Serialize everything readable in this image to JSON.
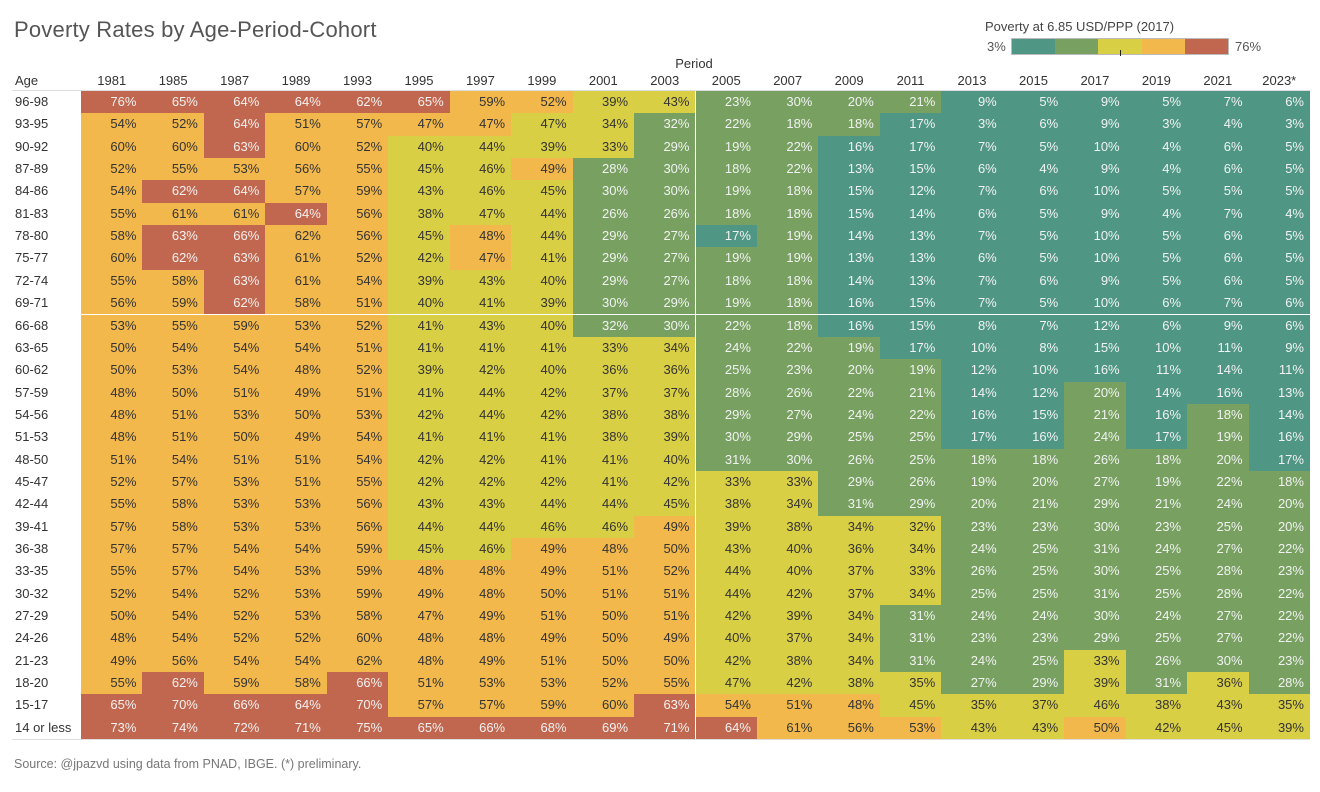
{
  "title": "Poverty Rates by Age-Period-Cohort",
  "source": "Source:  @jpazvd using data from PNAD, IBGE. (*) preliminary.",
  "legend": {
    "title": "Poverty at 6.85 USD/PPP (2017)",
    "min_label": "3%",
    "max_label": "76%",
    "colors": [
      "#4f9784",
      "#77a061",
      "#d9cf44",
      "#f2b84b",
      "#c2674f"
    ]
  },
  "chart_data": {
    "type": "heatmap",
    "title": "Poverty Rates by Age-Period-Cohort",
    "xlabel": "Period",
    "ylabel": "Age",
    "value_unit": "%",
    "color_range": [
      3,
      76
    ],
    "color_bins_key": {
      "T": "#4f9784",
      "G": "#77a061",
      "Y": "#d9cf44",
      "O": "#f2b84b",
      "R": "#c2674f"
    },
    "columns": [
      "1981",
      "1985",
      "1987",
      "1989",
      "1993",
      "1995",
      "1997",
      "1999",
      "2001",
      "2003",
      "2005",
      "2007",
      "2009",
      "2011",
      "2013",
      "2015",
      "2017",
      "2019",
      "2021",
      "2023*"
    ],
    "rows": [
      {
        "age": "96-98",
        "values": [
          76,
          65,
          64,
          64,
          62,
          65,
          59,
          52,
          39,
          43,
          23,
          30,
          20,
          21,
          9,
          5,
          9,
          5,
          7,
          6
        ],
        "bins": "RRRRRROOYYGGGGTTTTTT"
      },
      {
        "age": "93-95",
        "values": [
          54,
          52,
          64,
          51,
          57,
          47,
          47,
          47,
          34,
          32,
          22,
          18,
          18,
          17,
          3,
          6,
          9,
          3,
          4,
          3
        ],
        "bins": "OOROOOOYYGGGGTTTTTTT"
      },
      {
        "age": "90-92",
        "values": [
          60,
          60,
          63,
          60,
          52,
          40,
          44,
          39,
          33,
          29,
          19,
          22,
          16,
          17,
          7,
          5,
          10,
          4,
          6,
          5
        ],
        "bins": "OOROOYYYYGGGTTTTTTTT"
      },
      {
        "age": "87-89",
        "values": [
          52,
          55,
          53,
          56,
          55,
          45,
          46,
          49,
          28,
          30,
          18,
          22,
          13,
          15,
          6,
          4,
          9,
          4,
          6,
          5
        ],
        "bins": "OOOOOYYOGGGGTTTTTTTT"
      },
      {
        "age": "84-86",
        "values": [
          54,
          62,
          64,
          57,
          59,
          43,
          46,
          45,
          30,
          30,
          19,
          18,
          15,
          12,
          7,
          6,
          10,
          5,
          5,
          5
        ],
        "bins": "ORROOYYYGGGGTTTTTTTT"
      },
      {
        "age": "81-83",
        "values": [
          55,
          61,
          61,
          64,
          56,
          38,
          47,
          44,
          26,
          26,
          18,
          18,
          15,
          14,
          6,
          5,
          9,
          4,
          7,
          4
        ],
        "bins": "OOOROYYYGGGGTTTTTTTT"
      },
      {
        "age": "78-80",
        "values": [
          58,
          63,
          66,
          62,
          56,
          45,
          48,
          44,
          29,
          27,
          17,
          19,
          14,
          13,
          7,
          5,
          10,
          5,
          6,
          5
        ],
        "bins": "ORROOYOYGGTGTTTTTTTT"
      },
      {
        "age": "75-77",
        "values": [
          60,
          62,
          63,
          61,
          52,
          42,
          47,
          41,
          29,
          27,
          19,
          19,
          13,
          13,
          6,
          5,
          10,
          5,
          6,
          5
        ],
        "bins": "ORROOYOYGGGGTTTTTTTT"
      },
      {
        "age": "72-74",
        "values": [
          55,
          58,
          63,
          61,
          54,
          39,
          43,
          40,
          29,
          27,
          18,
          18,
          14,
          13,
          7,
          6,
          9,
          5,
          6,
          5
        ],
        "bins": "OOROOYYYGGGGTTTTTTTT"
      },
      {
        "age": "69-71",
        "values": [
          56,
          59,
          62,
          58,
          51,
          40,
          41,
          39,
          30,
          29,
          19,
          18,
          16,
          15,
          7,
          5,
          10,
          6,
          7,
          6
        ],
        "bins": "OOROOYYYGGGGTTTTTTTT"
      },
      {
        "age": "66-68",
        "values": [
          53,
          55,
          59,
          53,
          52,
          41,
          43,
          40,
          32,
          30,
          22,
          18,
          16,
          15,
          8,
          7,
          12,
          6,
          9,
          6
        ],
        "bins": "OOOOOYYYGGGGTTTTTTTT"
      },
      {
        "age": "63-65",
        "values": [
          50,
          54,
          54,
          54,
          51,
          41,
          41,
          41,
          33,
          34,
          24,
          22,
          19,
          17,
          10,
          8,
          15,
          10,
          11,
          9
        ],
        "bins": "OOOOOYYYYYGGGTTTTTTT"
      },
      {
        "age": "60-62",
        "values": [
          50,
          53,
          54,
          48,
          52,
          39,
          42,
          40,
          36,
          36,
          25,
          23,
          20,
          19,
          12,
          10,
          16,
          11,
          14,
          11
        ],
        "bins": "OOOOOYYYYYGGGGTTTTTT"
      },
      {
        "age": "57-59",
        "values": [
          48,
          50,
          51,
          49,
          51,
          41,
          44,
          42,
          37,
          37,
          28,
          26,
          22,
          21,
          14,
          12,
          20,
          14,
          16,
          13
        ],
        "bins": "OOOOOYYYYYGGGGTTGTTT"
      },
      {
        "age": "54-56",
        "values": [
          48,
          51,
          53,
          50,
          53,
          42,
          44,
          42,
          38,
          38,
          29,
          27,
          24,
          22,
          16,
          15,
          21,
          16,
          18,
          14
        ],
        "bins": "OOOOOYYYYYGGGGTTGTGT"
      },
      {
        "age": "51-53",
        "values": [
          48,
          51,
          50,
          49,
          54,
          41,
          41,
          41,
          38,
          39,
          30,
          29,
          25,
          25,
          17,
          16,
          24,
          17,
          19,
          16
        ],
        "bins": "OOOOOYYYYYGGGGTTGTGT"
      },
      {
        "age": "48-50",
        "values": [
          51,
          54,
          51,
          51,
          54,
          42,
          42,
          41,
          41,
          40,
          31,
          30,
          26,
          25,
          18,
          18,
          26,
          18,
          20,
          17
        ],
        "bins": "OOOOOYYYYYGGGGGGGGGT"
      },
      {
        "age": "45-47",
        "values": [
          52,
          57,
          53,
          51,
          55,
          42,
          42,
          42,
          41,
          42,
          33,
          33,
          29,
          26,
          19,
          20,
          27,
          19,
          22,
          18
        ],
        "bins": "OOOOOYYYYYYYGGGGGGGG"
      },
      {
        "age": "42-44",
        "values": [
          55,
          58,
          53,
          53,
          56,
          43,
          43,
          44,
          44,
          45,
          38,
          34,
          31,
          29,
          20,
          21,
          29,
          21,
          24,
          20
        ],
        "bins": "OOOOOYYYYYYYGGGGGGGG"
      },
      {
        "age": "39-41",
        "values": [
          57,
          58,
          53,
          53,
          56,
          44,
          44,
          46,
          46,
          49,
          39,
          38,
          34,
          32,
          23,
          23,
          30,
          23,
          25,
          20
        ],
        "bins": "OOOOOYYYYOYYYYGGGGGG"
      },
      {
        "age": "36-38",
        "values": [
          57,
          57,
          54,
          54,
          59,
          45,
          46,
          49,
          48,
          50,
          43,
          40,
          36,
          34,
          24,
          25,
          31,
          24,
          27,
          22
        ],
        "bins": "OOOOOYYOOOYYYYGGGGGG"
      },
      {
        "age": "33-35",
        "values": [
          55,
          57,
          54,
          53,
          59,
          48,
          48,
          49,
          51,
          52,
          44,
          40,
          37,
          33,
          26,
          25,
          30,
          25,
          28,
          23
        ],
        "bins": "OOOOOOOOOOYYYYGGGGGG"
      },
      {
        "age": "30-32",
        "values": [
          52,
          54,
          52,
          53,
          59,
          49,
          48,
          50,
          51,
          51,
          44,
          42,
          37,
          34,
          25,
          25,
          31,
          25,
          28,
          22
        ],
        "bins": "OOOOOOOOOOYYYYGGGGGG"
      },
      {
        "age": "27-29",
        "values": [
          50,
          54,
          52,
          53,
          58,
          47,
          49,
          51,
          50,
          51,
          42,
          39,
          34,
          31,
          24,
          24,
          30,
          24,
          27,
          22
        ],
        "bins": "OOOOOOOOOOYYYGGGGGGG"
      },
      {
        "age": "24-26",
        "values": [
          48,
          54,
          52,
          52,
          60,
          48,
          48,
          49,
          50,
          49,
          40,
          37,
          34,
          31,
          23,
          23,
          29,
          25,
          27,
          22
        ],
        "bins": "OOOOOOOOOOYYYGGGGGGG"
      },
      {
        "age": "21-23",
        "values": [
          49,
          56,
          54,
          54,
          62,
          48,
          49,
          51,
          50,
          50,
          42,
          38,
          34,
          31,
          24,
          25,
          33,
          26,
          30,
          23
        ],
        "bins": "OOOOOOOOOOYYYGGGYGGG"
      },
      {
        "age": "18-20",
        "values": [
          55,
          62,
          59,
          58,
          66,
          51,
          53,
          53,
          52,
          55,
          47,
          42,
          38,
          35,
          27,
          29,
          39,
          31,
          36,
          28
        ],
        "bins": "OROOROOOOOYYYYGGYGYG"
      },
      {
        "age": "15-17",
        "values": [
          65,
          70,
          66,
          64,
          70,
          57,
          57,
          59,
          60,
          63,
          54,
          51,
          48,
          45,
          35,
          37,
          46,
          38,
          43,
          35
        ],
        "bins": "RRRRROOOORОOOYYYYYYY"
      },
      {
        "age": "14 or less",
        "values": [
          73,
          74,
          72,
          71,
          75,
          65,
          66,
          68,
          69,
          71,
          64,
          61,
          56,
          53,
          43,
          43,
          50,
          42,
          45,
          39
        ],
        "bins": "RRRRRRRRRRROOOYYOYYY"
      }
    ]
  }
}
